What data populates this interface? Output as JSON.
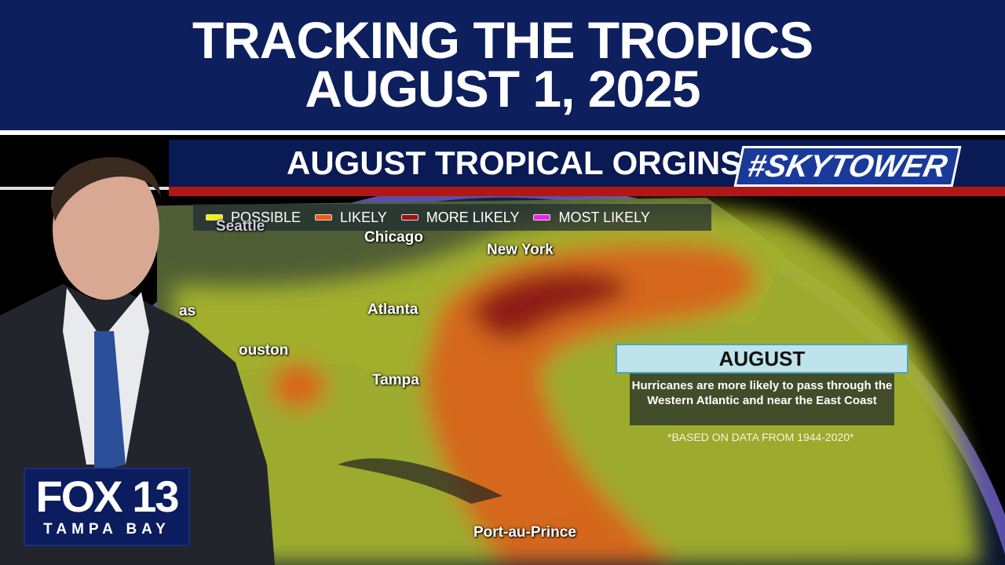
{
  "header": {
    "line1": "TRACKING THE TROPICS",
    "line2": "AUGUST 1, 2025"
  },
  "banner": {
    "title": "AUGUST TROPICAL ORGINS",
    "brand": "#SKYTOWER"
  },
  "legend": [
    {
      "label": "POSSIBLE",
      "color": "#f2f200"
    },
    {
      "label": "LIKELY",
      "color": "#f05a10"
    },
    {
      "label": "MORE LIKELY",
      "color": "#a01010"
    },
    {
      "label": "MOST LIKELY",
      "color": "#ee22ee"
    }
  ],
  "cities": {
    "seattle": "Seattle",
    "chicago": "Chicago",
    "new_york": "New York",
    "atlanta": "Atlanta",
    "dallas": "as",
    "houston": "ouston",
    "tampa": "Tampa",
    "port_au_prince": "Port-au-Prince"
  },
  "info": {
    "heading": "AUGUST",
    "body": "Hurricanes are more likely to pass through the Western Atlantic and near the East Coast",
    "note": "*BASED ON DATA FROM 1944-2020*"
  },
  "logo": {
    "name": "FOX 13",
    "sub": "TAMPA BAY"
  }
}
